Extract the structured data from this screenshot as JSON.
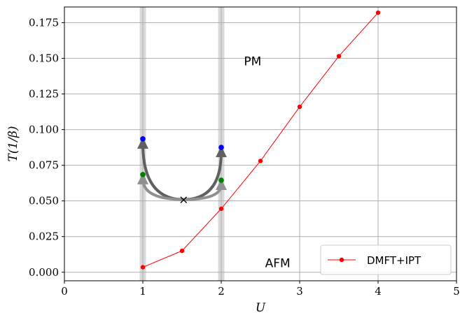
{
  "chart_data": {
    "type": "line",
    "title": "",
    "xlabel": "U",
    "ylabel": "T(1/β)",
    "xlim": [
      0,
      5
    ],
    "ylim": [
      -0.006,
      0.186
    ],
    "grid": true,
    "legend_position": "lower-right",
    "x_ticks": [
      0,
      1,
      2,
      3,
      4,
      5
    ],
    "y_ticks": [
      0.0,
      0.025,
      0.05,
      0.075,
      0.1,
      0.125,
      0.15,
      0.175
    ],
    "x_tick_labels": [
      "0",
      "1",
      "2",
      "3",
      "4",
      "5"
    ],
    "y_tick_labels": [
      "0.000",
      "0.025",
      "0.050",
      "0.075",
      "0.100",
      "0.125",
      "0.150",
      "0.175"
    ],
    "series": [
      {
        "name": "DMFT+IPT",
        "color": "#ff0000",
        "x": [
          1.0,
          1.5,
          2.0,
          2.5,
          3.0,
          3.5,
          4.0
        ],
        "y": [
          0.0035,
          0.015,
          0.0445,
          0.078,
          0.116,
          0.1515,
          0.182
        ]
      }
    ],
    "shaded_bands": [
      {
        "x_from": 0.96,
        "x_to": 1.04,
        "color": "#d9d9d9"
      },
      {
        "x_from": 1.96,
        "x_to": 2.04,
        "color": "#d9d9d9"
      }
    ],
    "annotations": [
      {
        "text": "PM",
        "x": 2.4,
        "y": 0.145
      },
      {
        "text": "AFM",
        "x": 2.72,
        "y": 0.0035
      },
      {
        "marker": "×",
        "x": 1.52,
        "y": 0.051
      }
    ],
    "marker_points": [
      {
        "x": 1.0,
        "y": 0.0935,
        "color": "#0000ff"
      },
      {
        "x": 1.0,
        "y": 0.0685,
        "color": "#008000"
      },
      {
        "x": 2.0,
        "y": 0.0875,
        "color": "#0000ff"
      },
      {
        "x": 2.0,
        "y": 0.0645,
        "color": "#008000"
      }
    ],
    "arrows": [
      {
        "from": [
          1.52,
          0.051
        ],
        "to": [
          1.0,
          0.0935
        ],
        "color": "#606060"
      },
      {
        "from": [
          1.52,
          0.051
        ],
        "to": [
          1.0,
          0.0685
        ],
        "color": "#909090"
      },
      {
        "from": [
          1.52,
          0.051
        ],
        "to": [
          2.0,
          0.0875
        ],
        "color": "#606060"
      },
      {
        "from": [
          1.52,
          0.051
        ],
        "to": [
          2.0,
          0.0645
        ],
        "color": "#909090"
      }
    ]
  }
}
